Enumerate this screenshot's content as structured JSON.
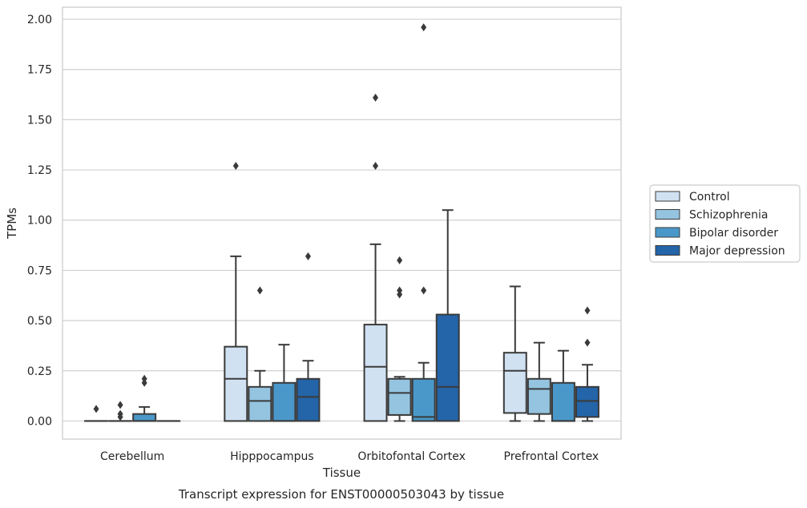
{
  "chart_data": {
    "type": "boxplot",
    "xlabel": "Tissue",
    "ylabel": "TPMs",
    "caption": "Transcript expression for ENST00000503043 by tissue",
    "ylim": [
      -0.09,
      2.06
    ],
    "yticks": [
      "0.00",
      "0.25",
      "0.50",
      "0.75",
      "1.00",
      "1.25",
      "1.50",
      "1.75",
      "2.00"
    ],
    "grid": "horizontal",
    "legend_position": "right",
    "categories": [
      "Cerebellum",
      "Hipppocampus",
      "Orbitofontal Cortex",
      "Prefrontal Cortex"
    ],
    "series": [
      {
        "name": "Control",
        "color": "#d0e1f2",
        "boxes": [
          {
            "low": 0,
            "q1": 0,
            "median": 0,
            "q3": 0,
            "high": 0,
            "fliers": [
              0.06
            ]
          },
          {
            "low": 0,
            "q1": 0,
            "median": 0.21,
            "q3": 0.37,
            "high": 0.82,
            "fliers": [
              1.27
            ]
          },
          {
            "low": 0,
            "q1": 0,
            "median": 0.27,
            "q3": 0.48,
            "high": 0.88,
            "fliers": [
              1.27,
              1.61
            ]
          },
          {
            "low": 0,
            "q1": 0.04,
            "median": 0.25,
            "q3": 0.34,
            "high": 0.67,
            "fliers": []
          }
        ]
      },
      {
        "name": "Schizophrenia",
        "color": "#94c4df",
        "boxes": [
          {
            "low": 0,
            "q1": 0,
            "median": 0,
            "q3": 0,
            "high": 0,
            "fliers": [
              0.02,
              0.035,
              0.08
            ]
          },
          {
            "low": 0,
            "q1": 0,
            "median": 0.1,
            "q3": 0.17,
            "high": 0.25,
            "fliers": [
              0.65
            ]
          },
          {
            "low": 0,
            "q1": 0.03,
            "median": 0.14,
            "q3": 0.21,
            "high": 0.22,
            "fliers": [
              0.63,
              0.65,
              0.8
            ]
          },
          {
            "low": 0,
            "q1": 0.035,
            "median": 0.16,
            "q3": 0.21,
            "high": 0.39,
            "fliers": []
          }
        ]
      },
      {
        "name": "Bipolar disorder",
        "color": "#4a98c9",
        "boxes": [
          {
            "low": 0,
            "q1": 0,
            "median": 0,
            "q3": 0.035,
            "high": 0.07,
            "fliers": [
              0.19,
              0.21
            ]
          },
          {
            "low": 0,
            "q1": 0,
            "median": 0,
            "q3": 0.19,
            "high": 0.38,
            "fliers": []
          },
          {
            "low": 0,
            "q1": 0,
            "median": 0.02,
            "q3": 0.21,
            "high": 0.29,
            "fliers": [
              0.65,
              1.96
            ]
          },
          {
            "low": 0,
            "q1": 0,
            "median": 0,
            "q3": 0.19,
            "high": 0.35,
            "fliers": []
          }
        ]
      },
      {
        "name": "Major depression",
        "color": "#2464a8",
        "boxes": [
          {
            "low": 0,
            "q1": 0,
            "median": 0,
            "q3": 0,
            "high": 0,
            "fliers": []
          },
          {
            "low": 0,
            "q1": 0,
            "median": 0.12,
            "q3": 0.21,
            "high": 0.3,
            "fliers": [
              0.82
            ]
          },
          {
            "low": 0,
            "q1": 0,
            "median": 0.17,
            "q3": 0.53,
            "high": 1.05,
            "fliers": []
          },
          {
            "low": 0,
            "q1": 0.02,
            "median": 0.1,
            "q3": 0.17,
            "high": 0.28,
            "fliers": [
              0.39,
              0.55
            ]
          }
        ]
      }
    ]
  }
}
